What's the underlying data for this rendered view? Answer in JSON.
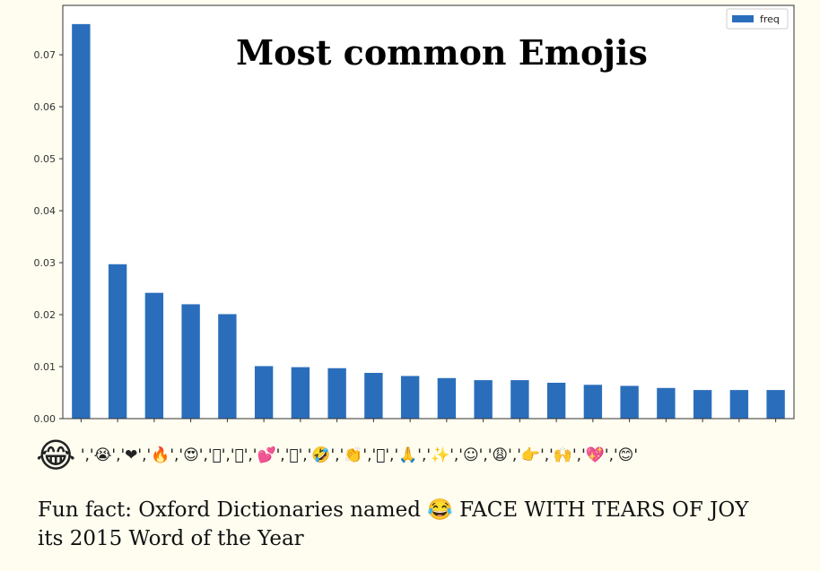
{
  "chart_data": {
    "type": "bar",
    "title": "Most common Emojis",
    "xlabel": "",
    "ylabel": "",
    "ylim": [
      0,
      0.0795
    ],
    "yticks": [
      "0.00",
      "0.01",
      "0.02",
      "0.03",
      "0.04",
      "0.05",
      "0.06",
      "0.07"
    ],
    "legend": "top-right",
    "grid": false,
    "series": [
      {
        "name": "freq",
        "color": "#2a6ebb",
        "values": [
          0.0759,
          0.0297,
          0.0242,
          0.022,
          0.0201,
          0.0101,
          0.0099,
          0.0097,
          0.0088,
          0.0082,
          0.0078,
          0.0074,
          0.0074,
          0.0069,
          0.0065,
          0.0063,
          0.0059,
          0.0055,
          0.0055,
          0.0055
        ]
      }
    ],
    "categories": [
      "😂",
      "😭",
      "❤",
      "🔥",
      "😍",
      "🏼",
      "🏽",
      "💕",
      "🏾",
      "🤣",
      "👏",
      "🏻",
      "🙏",
      "✨",
      "☺",
      "😩",
      "👉",
      "🙌",
      "💖",
      "😊"
    ]
  },
  "emoji_row_first": "😂",
  "funfact": "Fun fact: Oxford Dictionaries named 😂 FACE WITH TEARS OF JOY its 2015 Word of the Year"
}
